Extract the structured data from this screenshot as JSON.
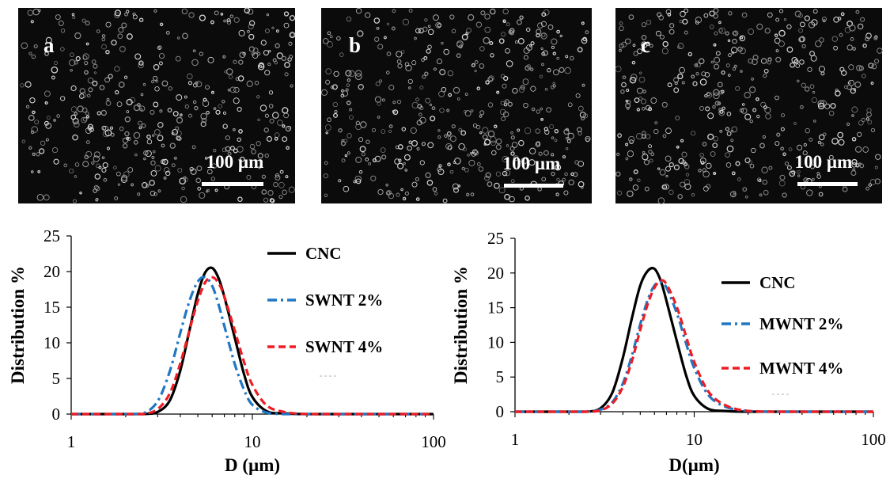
{
  "micrographs": [
    {
      "panel_label": "a",
      "scale_label": "100 µm"
    },
    {
      "panel_label": "b",
      "scale_label": "100 µm"
    },
    {
      "panel_label": "c",
      "scale_label": "100 µm"
    }
  ],
  "colors": {
    "cnc": "#000000",
    "nt_2pct": "#1f77c4",
    "nt_4pct": "#ee1c24"
  },
  "chart_data": [
    {
      "type": "line",
      "xlabel": "D (µm)",
      "ylabel": "Distribution %",
      "xscale": "log",
      "xlim": [
        1,
        100
      ],
      "ylim": [
        0,
        25
      ],
      "xticks": [
        "1",
        "10",
        "100"
      ],
      "yticks": [
        "0",
        "5",
        "10",
        "15",
        "20",
        "25"
      ],
      "grid": false,
      "legend_position": "right",
      "x": [
        1,
        2,
        2.5,
        3,
        3.5,
        4,
        4.5,
        5,
        5.5,
        6,
        6.5,
        7,
        8,
        9,
        10,
        12,
        15,
        20,
        30,
        50,
        100
      ],
      "series": [
        {
          "name": "CNC",
          "style": "solid",
          "values": [
            0,
            0,
            0,
            0.3,
            1.9,
            6.1,
            11.8,
            16.9,
            19.9,
            20.5,
            19.1,
            16.5,
            10.7,
            5.6,
            2.4,
            0.4,
            0.1,
            0,
            0,
            0,
            0
          ]
        },
        {
          "name": "SWNT 2%",
          "style": "dash-dot",
          "values": [
            0,
            0,
            0.1,
            1.8,
            6,
            11.4,
            15.9,
            18.6,
            19.2,
            18,
            15.4,
            12.4,
            7,
            3.4,
            1.3,
            0.2,
            0,
            0,
            0,
            0,
            0
          ]
        },
        {
          "name": "SWNT 4%",
          "style": "dashed",
          "values": [
            0,
            0,
            0,
            0.7,
            2.9,
            7.1,
            11.8,
            15.9,
            18.5,
            19.2,
            18.4,
            16.5,
            11.7,
            7.3,
            4.1,
            1.2,
            0.3,
            0,
            0,
            0,
            0
          ]
        }
      ]
    },
    {
      "type": "line",
      "xlabel": "D(µm)",
      "ylabel": "Distribution %",
      "xscale": "log",
      "xlim": [
        1,
        100
      ],
      "ylim": [
        0,
        25
      ],
      "xticks": [
        "1",
        "10",
        "100"
      ],
      "yticks": [
        "0",
        "5",
        "10",
        "15",
        "20",
        "25"
      ],
      "grid": false,
      "legend_position": "right",
      "x": [
        1,
        2,
        2.5,
        3,
        3.5,
        4,
        4.5,
        5,
        5.5,
        6,
        6.5,
        7,
        8,
        9,
        10,
        12,
        15,
        20,
        30,
        50,
        100
      ],
      "series": [
        {
          "name": "CNC",
          "style": "solid",
          "values": [
            0,
            0,
            0,
            0.5,
            2.8,
            7.8,
            13.6,
            18.2,
            20.3,
            20.6,
            18.9,
            16,
            10.2,
            5.3,
            2.3,
            0.4,
            0.1,
            0,
            0,
            0,
            0
          ]
        },
        {
          "name": "MWNT 2%",
          "style": "dash-dot",
          "values": [
            0,
            0,
            0,
            0.3,
            1.4,
            4.1,
            8.2,
            12.6,
            16.1,
            18.2,
            18.7,
            17.9,
            14.2,
            9.9,
            6.3,
            2.4,
            0.7,
            0.1,
            0,
            0,
            0
          ]
        },
        {
          "name": "MWNT 4%",
          "style": "dashed",
          "values": [
            0,
            0,
            0,
            0.2,
            1.2,
            3.6,
            7.4,
            11.8,
            15.5,
            17.9,
            18.9,
            18.4,
            15.1,
            10.9,
            7.2,
            2.9,
            0.9,
            0.1,
            0,
            0,
            0
          ]
        }
      ]
    }
  ]
}
